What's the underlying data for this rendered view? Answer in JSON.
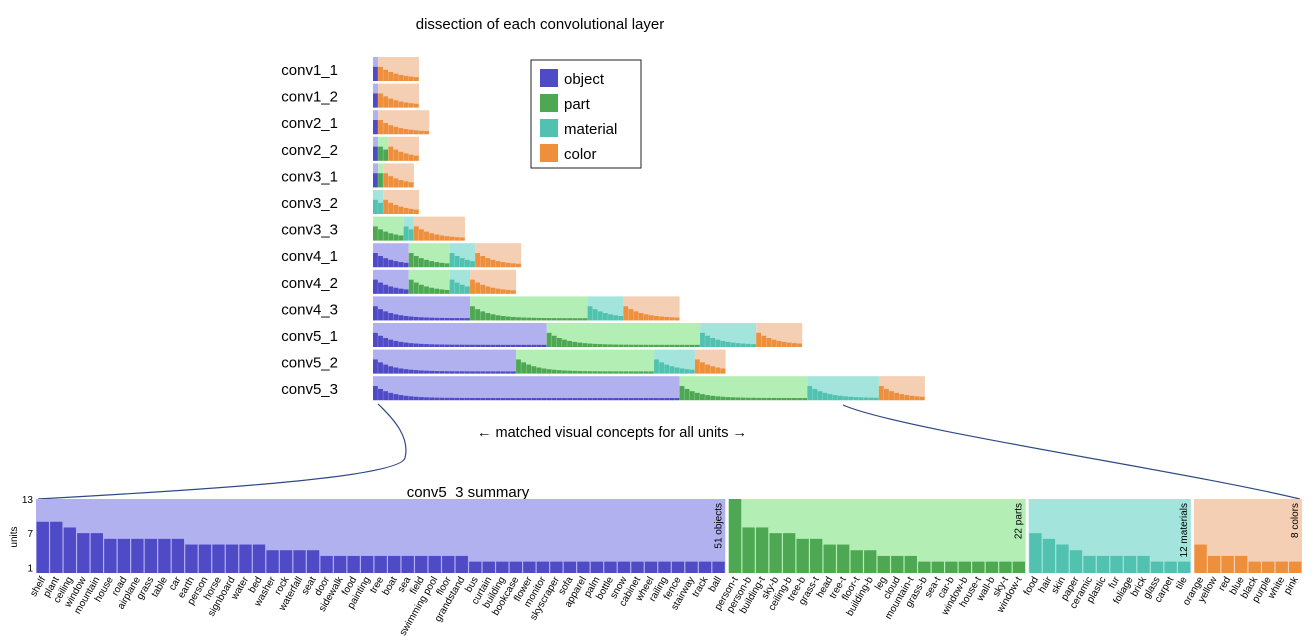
{
  "chart_data": [
    {
      "type": "bar",
      "title": "dissection of each convolutional layer",
      "subtitle": "← matched visual concepts for all units →",
      "legend": {
        "placement": "top",
        "items": [
          {
            "name": "object",
            "color": "#4f4ac6"
          },
          {
            "name": "part",
            "color": "#4ea853"
          },
          {
            "name": "material",
            "color": "#52c2b0"
          },
          {
            "name": "color",
            "color": "#ee8f3b"
          }
        ]
      },
      "background_colors": {
        "object": "#b1b1f0",
        "part": "#b3efb5",
        "material": "#a3e5dc",
        "color": "#f4cfb3"
      },
      "layers": [
        {
          "name": "conv1_1",
          "objects": 1,
          "parts": 0,
          "materials": 0,
          "colors": 8
        },
        {
          "name": "conv1_2",
          "objects": 1,
          "parts": 0,
          "materials": 0,
          "colors": 8
        },
        {
          "name": "conv2_1",
          "objects": 1,
          "parts": 0,
          "materials": 0,
          "colors": 10
        },
        {
          "name": "conv2_2",
          "objects": 1,
          "parts": 2,
          "materials": 0,
          "colors": 6
        },
        {
          "name": "conv3_1",
          "objects": 1,
          "parts": 1,
          "materials": 0,
          "colors": 6
        },
        {
          "name": "conv3_2",
          "objects": 0,
          "parts": 0,
          "materials": 2,
          "colors": 7
        },
        {
          "name": "conv3_3",
          "objects": 0,
          "parts": 6,
          "materials": 2,
          "colors": 10
        },
        {
          "name": "conv4_1",
          "objects": 7,
          "parts": 8,
          "materials": 5,
          "colors": 9
        },
        {
          "name": "conv4_2",
          "objects": 7,
          "parts": 8,
          "materials": 4,
          "colors": 9
        },
        {
          "name": "conv4_3",
          "objects": 19,
          "parts": 23,
          "materials": 7,
          "colors": 11
        },
        {
          "name": "conv5_1",
          "objects": 34,
          "parts": 30,
          "materials": 11,
          "colors": 9
        },
        {
          "name": "conv5_2",
          "objects": 28,
          "parts": 27,
          "materials": 8,
          "colors": 6
        },
        {
          "name": "conv5_3",
          "objects": 60,
          "parts": 25,
          "materials": 14,
          "colors": 9
        }
      ]
    },
    {
      "type": "bar",
      "title": "conv5_3 summary",
      "ylabel": "units",
      "yticks": [
        1,
        7,
        13
      ],
      "ylim": [
        0,
        13
      ],
      "groups": [
        {
          "name": "object",
          "count_label": "51 objects",
          "categories": [
            "shelf",
            "plant",
            "ceiling",
            "window",
            "mountain",
            "house",
            "road",
            "airplane",
            "grass",
            "table",
            "car",
            "earth",
            "person",
            "horse",
            "signboard",
            "water",
            "bed",
            "washer",
            "rock",
            "waterfall",
            "seat",
            "door",
            "sidewalk",
            "food",
            "painting",
            "tree",
            "boat",
            "sea",
            "field",
            "swimming pool",
            "floor",
            "grandstand",
            "bus",
            "curtain",
            "building",
            "bookcase",
            "flower",
            "monitor",
            "skyscraper",
            "sofa",
            "apparel",
            "palm",
            "bottle",
            "snow",
            "cabinet",
            "wheel",
            "railing",
            "fence",
            "stairway",
            "track",
            "ball"
          ],
          "values": [
            9,
            9,
            8,
            7,
            7,
            6,
            6,
            6,
            6,
            6,
            6,
            5,
            5,
            5,
            5,
            5,
            5,
            4,
            4,
            4,
            4,
            3,
            3,
            3,
            3,
            3,
            3,
            3,
            3,
            3,
            3,
            3,
            2,
            2,
            2,
            2,
            2,
            2,
            2,
            2,
            2,
            2,
            2,
            2,
            2,
            2,
            2,
            2,
            2,
            2,
            2
          ]
        },
        {
          "name": "part",
          "count_label": "22 parts",
          "categories": [
            "person-t",
            "person-b",
            "building-t",
            "sky-b",
            "ceiling-b",
            "tree-b",
            "grass-t",
            "head",
            "tree-t",
            "floor-t",
            "building-b",
            "leg",
            "cloud",
            "mountain-t",
            "grass-b",
            "sea-t",
            "car-b",
            "window-b",
            "house-t",
            "wall-b",
            "sky-t",
            "window-t"
          ],
          "values": [
            13,
            8,
            8,
            7,
            7,
            6,
            6,
            5,
            5,
            4,
            4,
            3,
            3,
            3,
            2,
            2,
            2,
            2,
            2,
            2,
            2,
            2
          ]
        },
        {
          "name": "material",
          "count_label": "12 materials",
          "categories": [
            "food",
            "hair",
            "skin",
            "paper",
            "ceramic",
            "plastic",
            "fur",
            "foliage",
            "brick",
            "glass",
            "carpet",
            "tile"
          ],
          "values": [
            7,
            6,
            5,
            4,
            3,
            3,
            3,
            3,
            3,
            2,
            2,
            2
          ]
        },
        {
          "name": "color",
          "count_label": "8 colors",
          "categories": [
            "orange",
            "yellow",
            "red",
            "blue",
            "black",
            "purple",
            "white",
            "pink"
          ],
          "values": [
            5,
            3,
            3,
            3,
            2,
            2,
            2,
            2
          ]
        }
      ]
    }
  ]
}
